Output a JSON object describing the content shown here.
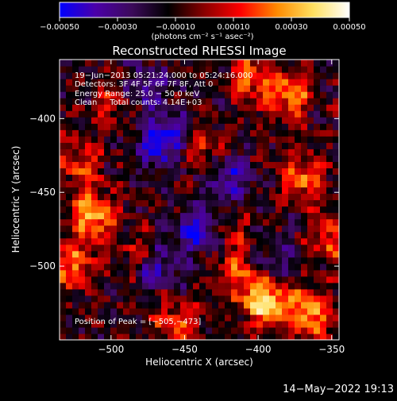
{
  "chart_data": {
    "type": "heatmap",
    "title": "Reconstructed RHESSI Image",
    "xlabel": "Heliocentric X (arcsec)",
    "ylabel": "Heliocentric Y (arcsec)",
    "xlim": [
      -535,
      -345
    ],
    "ylim": [
      -550,
      -360
    ],
    "x_ticks": [
      -500,
      -450,
      -400,
      -350
    ],
    "x_tick_labels": [
      "−500",
      "−450",
      "−400",
      "−350"
    ],
    "y_ticks": [
      -400,
      -450,
      -500
    ],
    "y_tick_labels": [
      "−400",
      "−450",
      "−500"
    ],
    "colorbar": {
      "range": [
        -0.0005,
        0.0005
      ],
      "ticks": [
        -0.0005,
        -0.0003,
        -0.0001,
        0.0001,
        0.0003,
        0.0005
      ],
      "tick_labels": [
        "−0.00050",
        "−0.00030",
        "−0.00010",
        "0.00010",
        "0.00030",
        "0.00050"
      ],
      "unit_label": "(photons cm⁻² s⁻¹ asec⁻²)",
      "colormap": [
        "#0000ff",
        "#4b00a8",
        "#3c0a5a",
        "#000000",
        "#8a0000",
        "#ff0000",
        "#ff8a00",
        "#ffe060",
        "#ffffff"
      ]
    },
    "annotations": [
      "19−Jun−2013 05:21:24.000 to 05:24:16.000",
      "Detectors: 3F 4F 5F 6F 7F 8F, Att 0",
      "Energy Range: 25.0 − 50.0 keV",
      "Clean     Total counts: 4.14E+03"
    ],
    "peak_label": "Position of Peak = [−505,−473]",
    "peak": [
      -505,
      -473
    ],
    "hotspots": [
      {
        "x": -512,
        "y": -465,
        "value": 0.00045
      },
      {
        "x": -525,
        "y": -500,
        "value": 0.00032
      },
      {
        "x": -520,
        "y": -430,
        "value": 0.00028
      },
      {
        "x": -480,
        "y": -492,
        "value": 0.00022
      },
      {
        "x": -395,
        "y": -524,
        "value": 0.0005
      },
      {
        "x": -365,
        "y": -532,
        "value": 0.0004
      },
      {
        "x": -370,
        "y": -440,
        "value": 0.00034
      },
      {
        "x": -380,
        "y": -385,
        "value": 0.00036
      },
      {
        "x": -405,
        "y": -372,
        "value": 0.0003
      },
      {
        "x": -420,
        "y": -475,
        "value": 0.0002
      },
      {
        "x": -455,
        "y": -538,
        "value": 0.0003
      },
      {
        "x": -438,
        "y": -420,
        "value": 0.00024
      },
      {
        "x": -500,
        "y": -390,
        "value": 0.00018
      },
      {
        "x": -350,
        "y": -480,
        "value": 0.0003
      },
      {
        "x": -412,
        "y": -505,
        "value": 0.00026
      }
    ],
    "coldspots": [
      {
        "x": -465,
        "y": -415,
        "value": -0.00042
      },
      {
        "x": -440,
        "y": -475,
        "value": -0.00038
      },
      {
        "x": -470,
        "y": -500,
        "value": -0.0003
      },
      {
        "x": -420,
        "y": -440,
        "value": -0.00028
      },
      {
        "x": -475,
        "y": -380,
        "value": -0.00022
      },
      {
        "x": -390,
        "y": -495,
        "value": -0.0002
      }
    ]
  },
  "footer_timestamp": "14−May−2022 19:13"
}
